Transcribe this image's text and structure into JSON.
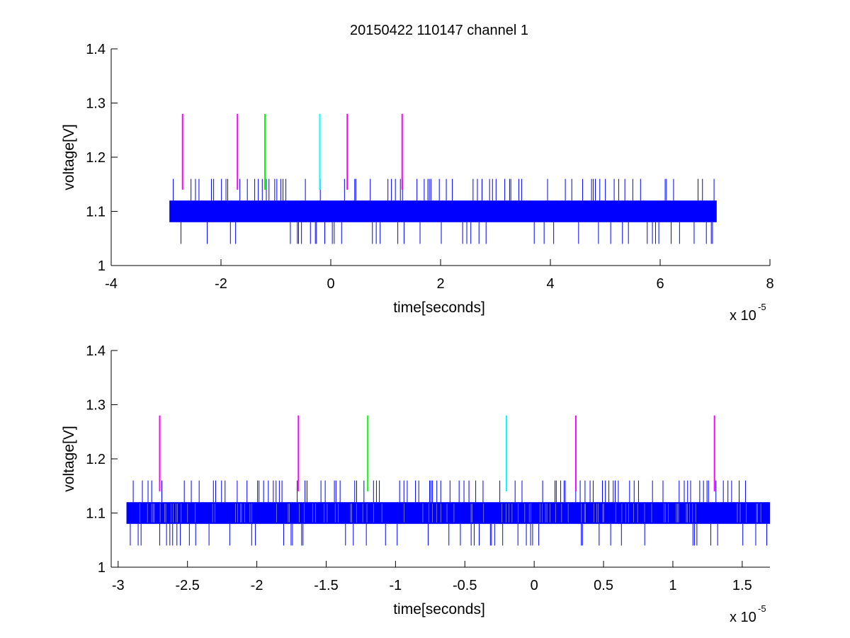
{
  "chart_data": [
    {
      "type": "line",
      "title": "20150422 110147 channel 1",
      "xlabel": "time[seconds]",
      "ylabel": "voltage[V]",
      "x_multiplier_label": "x 10",
      "x_multiplier_exponent": "-5",
      "xlim": [
        -4,
        8
      ],
      "ylim": [
        1,
        1.4
      ],
      "xticks": [
        -4,
        -2,
        0,
        2,
        4,
        6,
        8
      ],
      "xtick_labels": [
        "-4",
        "-2",
        "0",
        "2",
        "4",
        "6",
        "8"
      ],
      "yticks": [
        1,
        1.1,
        1.2,
        1.3,
        1.4
      ],
      "ytick_labels": [
        "1",
        "1.1",
        "1.2",
        "1.3",
        "1.4"
      ],
      "signal": {
        "color": "#0000ff",
        "x_range": [
          -2.94,
          7.03
        ],
        "band": [
          1.08,
          1.12
        ],
        "spike_high": 1.16,
        "spike_low": 1.04
      },
      "markers": [
        {
          "x": -2.7,
          "y_from": 1.14,
          "y_to": 1.28,
          "color": "#ff00ff"
        },
        {
          "x": -1.7,
          "y_from": 1.14,
          "y_to": 1.28,
          "color": "#ff00ff"
        },
        {
          "x": -1.2,
          "y_from": 1.14,
          "y_to": 1.28,
          "color": "#00ff00"
        },
        {
          "x": -0.2,
          "y_from": 1.14,
          "y_to": 1.28,
          "color": "#00ffff"
        },
        {
          "x": 0.3,
          "y_from": 1.14,
          "y_to": 1.28,
          "color": "#ff00ff"
        },
        {
          "x": 1.3,
          "y_from": 1.14,
          "y_to": 1.28,
          "color": "#ff00ff"
        }
      ],
      "grid": false
    },
    {
      "type": "line",
      "title": "",
      "xlabel": "time[seconds]",
      "ylabel": "voltage[V]",
      "x_multiplier_label": "x 10",
      "x_multiplier_exponent": "-5",
      "xlim": [
        -3.05,
        1.7
      ],
      "ylim": [
        1,
        1.4
      ],
      "xticks": [
        -3,
        -2.5,
        -2,
        -1.5,
        -1,
        -0.5,
        0,
        0.5,
        1,
        1.5
      ],
      "xtick_labels": [
        "-3",
        "-2.5",
        "-2",
        "-1.5",
        "-1",
        "-0.5",
        "0",
        "0.5",
        "1",
        "1.5"
      ],
      "yticks": [
        1,
        1.1,
        1.2,
        1.3,
        1.4
      ],
      "ytick_labels": [
        "1",
        "1.1",
        "1.2",
        "1.3",
        "1.4"
      ],
      "signal": {
        "color": "#0000ff",
        "x_range": [
          -2.94,
          1.7
        ],
        "band": [
          1.08,
          1.12
        ],
        "spike_high": 1.16,
        "spike_low": 1.04
      },
      "markers": [
        {
          "x": -2.7,
          "y_from": 1.14,
          "y_to": 1.28,
          "color": "#ff00ff"
        },
        {
          "x": -1.7,
          "y_from": 1.14,
          "y_to": 1.28,
          "color": "#ff00ff"
        },
        {
          "x": -1.2,
          "y_from": 1.14,
          "y_to": 1.28,
          "color": "#00ff00"
        },
        {
          "x": -0.2,
          "y_from": 1.14,
          "y_to": 1.28,
          "color": "#00ffff"
        },
        {
          "x": 0.3,
          "y_from": 1.14,
          "y_to": 1.28,
          "color": "#ff00ff"
        },
        {
          "x": 1.3,
          "y_from": 1.14,
          "y_to": 1.28,
          "color": "#ff00ff"
        }
      ],
      "grid": false
    }
  ]
}
